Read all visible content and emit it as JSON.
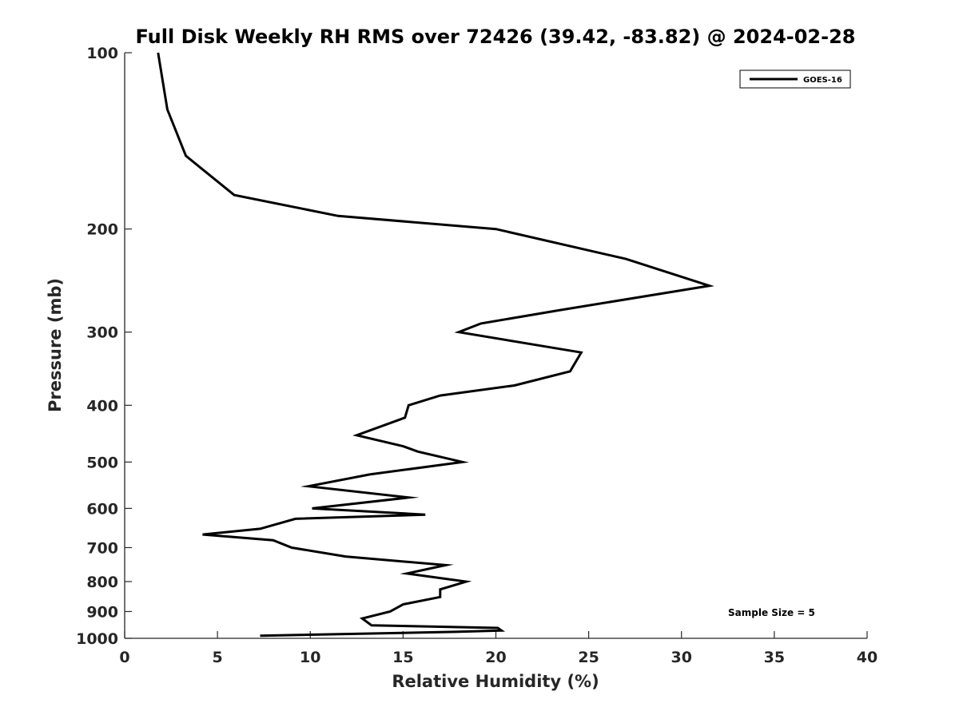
{
  "chart_data": {
    "type": "line",
    "title": "Full Disk Weekly RH RMS over 72426 (39.42, -83.82) @ 2024-02-28",
    "xlabel": "Relative Humidity (%)",
    "ylabel": "Pressure (mb)",
    "xlim": [
      0,
      40
    ],
    "ylim": [
      100,
      1000
    ],
    "y_scale": "log",
    "y_reversed": true,
    "xticks": [
      "0",
      "5",
      "10",
      "15",
      "20",
      "25",
      "30",
      "35",
      "40"
    ],
    "yticks": [
      "100",
      "200",
      "300",
      "400",
      "500",
      "600",
      "700",
      "800",
      "900",
      "1000"
    ],
    "grid": false,
    "legend": {
      "position": "top-right",
      "entries": [
        "GOES-16"
      ]
    },
    "annotation": "Sample Size = 5",
    "series": [
      {
        "name": "GOES-16",
        "color": "#000000",
        "points": [
          [
            1.8,
            100
          ],
          [
            2.3,
            125
          ],
          [
            3.3,
            150
          ],
          [
            5.9,
            175
          ],
          [
            11.5,
            190
          ],
          [
            20.0,
            200
          ],
          [
            27.0,
            225
          ],
          [
            31.5,
            250
          ],
          [
            23.5,
            275
          ],
          [
            19.2,
            290
          ],
          [
            18.0,
            300
          ],
          [
            24.6,
            325
          ],
          [
            24.0,
            350
          ],
          [
            21.0,
            370
          ],
          [
            17.0,
            385
          ],
          [
            15.3,
            400
          ],
          [
            15.1,
            420
          ],
          [
            12.5,
            450
          ],
          [
            15.0,
            470
          ],
          [
            15.8,
            480
          ],
          [
            18.2,
            500
          ],
          [
            13.2,
            525
          ],
          [
            9.9,
            550
          ],
          [
            15.3,
            575
          ],
          [
            10.1,
            600
          ],
          [
            16.2,
            615
          ],
          [
            9.2,
            625
          ],
          [
            7.3,
            650
          ],
          [
            4.2,
            665
          ],
          [
            8.0,
            680
          ],
          [
            9.0,
            700
          ],
          [
            11.9,
            725
          ],
          [
            17.3,
            750
          ],
          [
            15.2,
            775
          ],
          [
            18.4,
            800
          ],
          [
            17.0,
            825
          ],
          [
            17.0,
            850
          ],
          [
            15.0,
            875
          ],
          [
            14.3,
            900
          ],
          [
            12.8,
            925
          ],
          [
            13.3,
            950
          ],
          [
            20.1,
            960
          ],
          [
            20.3,
            970
          ],
          [
            17.8,
            975
          ],
          [
            7.3,
            990
          ]
        ]
      }
    ]
  }
}
